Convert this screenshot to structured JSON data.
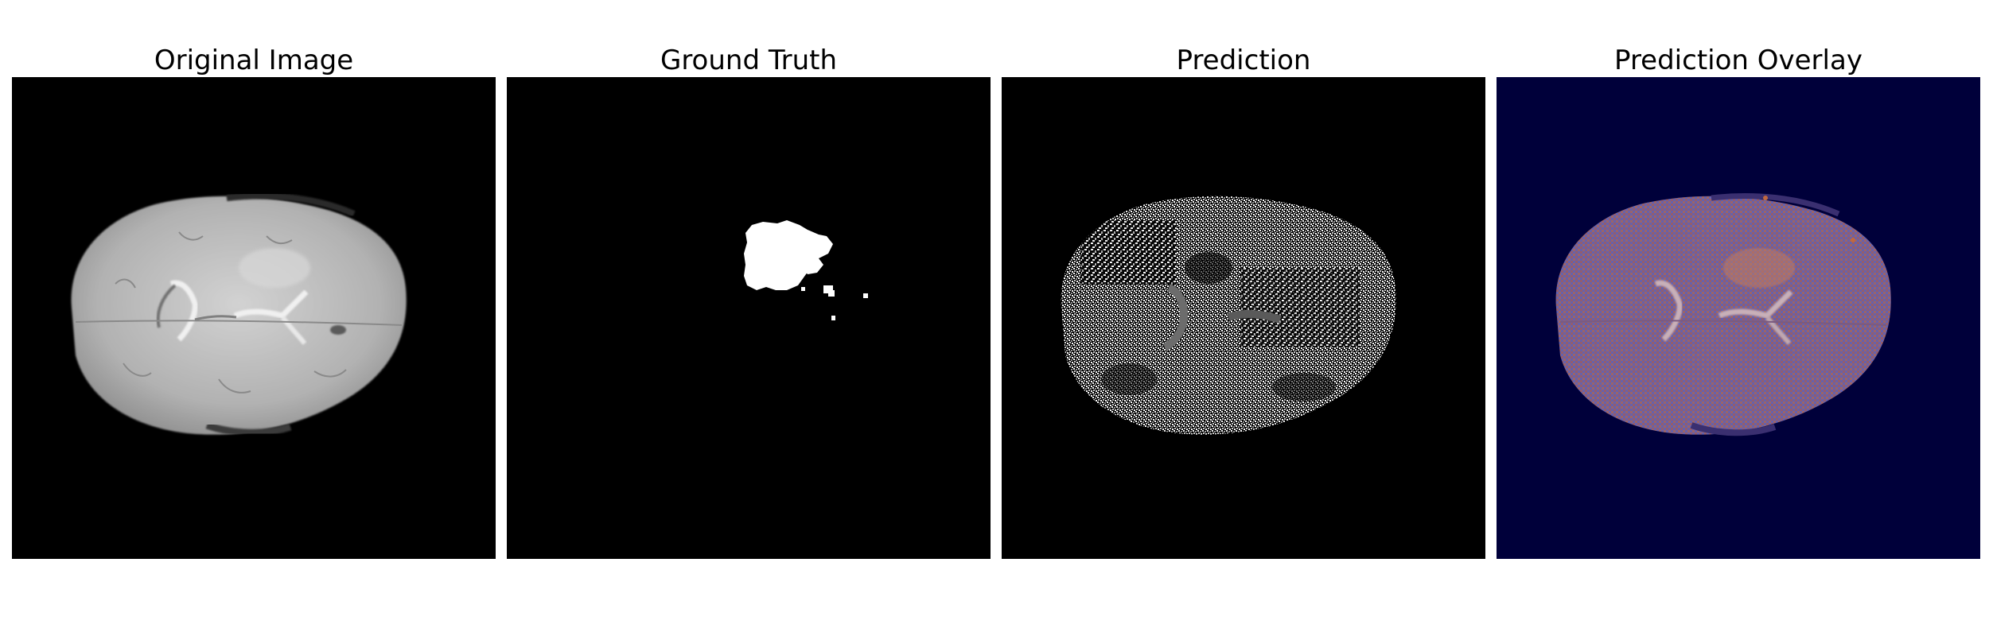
{
  "panels": [
    {
      "title": "Original Image",
      "background": "#000000"
    },
    {
      "title": "Ground Truth",
      "background": "#000000"
    },
    {
      "title": "Prediction",
      "background": "#000000"
    },
    {
      "title": "Prediction Overlay",
      "background": "#00003a"
    }
  ],
  "colors": {
    "brain_gray": "#bdbdbd",
    "mask_white": "#ffffff",
    "overlay_blue": "#5b5fae",
    "overlay_orange": "#c0683f"
  }
}
